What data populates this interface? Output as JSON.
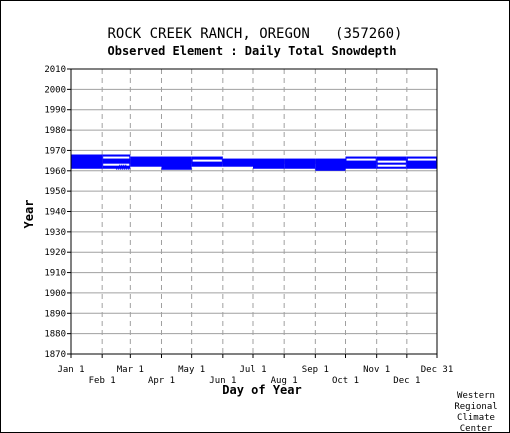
{
  "chart_data": {
    "type": "bar",
    "title": "ROCK CREEK RANCH, OREGON   (357260)",
    "subtitle": "Observed Element : Daily Total Snowdepth",
    "xlabel": "Day of Year",
    "ylabel": "Year",
    "ylim": [
      1870,
      2010
    ],
    "yticks": [
      1870,
      1880,
      1890,
      1900,
      1910,
      1920,
      1930,
      1940,
      1950,
      1960,
      1970,
      1980,
      1990,
      2000,
      2010
    ],
    "xlim": [
      1,
      365
    ],
    "xticks_top": [
      {
        "label": "Jan 1",
        "day": 1
      },
      {
        "label": "Mar 1",
        "day": 60
      },
      {
        "label": "May 1",
        "day": 121
      },
      {
        "label": "Jul 1",
        "day": 182
      },
      {
        "label": "Sep 1",
        "day": 244
      },
      {
        "label": "Nov 1",
        "day": 305
      },
      {
        "label": "Dec 31",
        "day": 365
      }
    ],
    "xticks_bottom": [
      {
        "label": "Feb 1",
        "day": 32
      },
      {
        "label": "Apr 1",
        "day": 91
      },
      {
        "label": "Jun 1",
        "day": 152
      },
      {
        "label": "Aug 1",
        "day": 213
      },
      {
        "label": "Oct 1",
        "day": 274
      },
      {
        "label": "Dec 1",
        "day": 335
      }
    ],
    "grid": true,
    "series_color": "#0000ff",
    "records": [
      {
        "y0": 1961,
        "y1": 1968,
        "d0": 1,
        "d1": 32
      },
      {
        "y0": 1961,
        "y1": 1968,
        "d0": 32,
        "d1": 60
      },
      {
        "y0": 1962,
        "y1": 1967,
        "d0": 60,
        "d1": 91
      },
      {
        "y0": 1960.5,
        "y1": 1967,
        "d0": 91,
        "d1": 121
      },
      {
        "y0": 1962,
        "y1": 1967,
        "d0": 121,
        "d1": 152
      },
      {
        "y0": 1962,
        "y1": 1966,
        "d0": 152,
        "d1": 182
      },
      {
        "y0": 1961,
        "y1": 1966,
        "d0": 182,
        "d1": 213
      },
      {
        "y0": 1961,
        "y1": 1966,
        "d0": 213,
        "d1": 244
      },
      {
        "y0": 1960,
        "y1": 1966,
        "d0": 244,
        "d1": 274
      },
      {
        "y0": 1961,
        "y1": 1967,
        "d0": 274,
        "d1": 305
      },
      {
        "y0": 1961,
        "y1": 1967,
        "d0": 305,
        "d1": 335
      },
      {
        "y0": 1961,
        "y1": 1967,
        "d0": 335,
        "d1": 365
      }
    ],
    "gaps": [
      {
        "year": 1966.5,
        "d0": 32,
        "d1": 60
      },
      {
        "year": 1963,
        "d0": 32,
        "d1": 60
      },
      {
        "year": 1968,
        "d0": 121,
        "d1": 152
      },
      {
        "year": 1965,
        "d0": 121,
        "d1": 152
      },
      {
        "year": 1968,
        "d0": 182,
        "d1": 213
      },
      {
        "year": 1965.5,
        "d0": 274,
        "d1": 305
      },
      {
        "year": 1964.5,
        "d0": 305,
        "d1": 335
      },
      {
        "year": 1962.5,
        "d0": 305,
        "d1": 335
      },
      {
        "year": 1965.5,
        "d0": 335,
        "d1": 365
      }
    ],
    "sparse_marks": [
      {
        "year": 1961.5,
        "d0": 46,
        "d1": 58
      },
      {
        "year": 1962.5,
        "d0": 49,
        "d1": 55
      }
    ]
  },
  "credit": [
    "Western",
    "Regional",
    "Climate",
    "Center"
  ]
}
